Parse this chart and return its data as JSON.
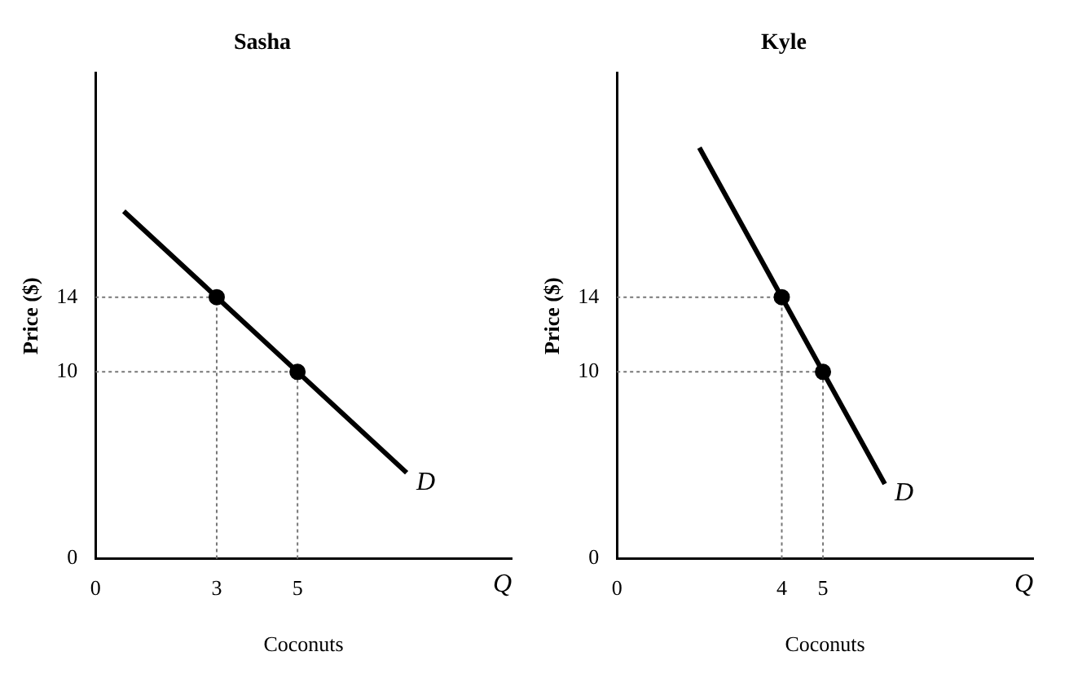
{
  "chart_data": [
    {
      "type": "line",
      "title": "Sasha",
      "xlabel": "Coconuts",
      "ylabel": "Price ($)",
      "xlim": [
        0,
        10.3
      ],
      "ylim": [
        0,
        26
      ],
      "xticks": [
        0,
        3,
        5
      ],
      "yticks": [
        0,
        10,
        14
      ],
      "grid": false,
      "legend": false,
      "series": [
        {
          "type": "line",
          "x": [
            0.7,
            3,
            5,
            7.7
          ],
          "values": [
            18.6,
            14,
            10,
            4.6
          ],
          "color": "#000000",
          "marker": "none"
        },
        {
          "type": "scatter",
          "x": [
            3,
            5
          ],
          "values": [
            14,
            10
          ],
          "color": "#000000",
          "marker": "circle"
        }
      ],
      "ref_lines": [
        {
          "axis": "x",
          "value": 3,
          "line_style": "dotted",
          "color": "#777777"
        },
        {
          "axis": "x",
          "value": 5,
          "line_style": "dotted",
          "color": "#777777"
        },
        {
          "axis": "y",
          "value": 14,
          "line_style": "dotted",
          "color": "#777777"
        },
        {
          "axis": "y",
          "value": 10,
          "line_style": "dotted",
          "color": "#777777"
        }
      ],
      "annotations": [
        {
          "text": "D",
          "x": 7.7,
          "y": 4.6
        },
        "Q"
      ]
    },
    {
      "type": "line",
      "title": "Kyle",
      "xlabel": "Coconuts",
      "ylabel": "Price ($)",
      "xlim": [
        0,
        10.1
      ],
      "ylim": [
        0,
        26
      ],
      "xticks": [
        0,
        4,
        5
      ],
      "yticks": [
        0,
        10,
        14
      ],
      "grid": false,
      "legend": false,
      "series": [
        {
          "type": "line",
          "x": [
            2,
            4,
            5,
            6.5
          ],
          "values": [
            22,
            14,
            10,
            4
          ],
          "color": "#000000",
          "marker": "none"
        },
        {
          "type": "scatter",
          "x": [
            4,
            5
          ],
          "values": [
            14,
            10
          ],
          "color": "#000000",
          "marker": "circle"
        }
      ],
      "ref_lines": [
        {
          "axis": "x",
          "value": 4,
          "line_style": "dotted",
          "color": "#777777"
        },
        {
          "axis": "x",
          "value": 5,
          "line_style": "dotted",
          "color": "#777777"
        },
        {
          "axis": "y",
          "value": 14,
          "line_style": "dotted",
          "color": "#777777"
        },
        {
          "axis": "y",
          "value": 10,
          "line_style": "dotted",
          "color": "#777777"
        }
      ],
      "annotations": [
        {
          "text": "D",
          "x": 6.5,
          "y": 4
        },
        "Q"
      ]
    }
  ]
}
